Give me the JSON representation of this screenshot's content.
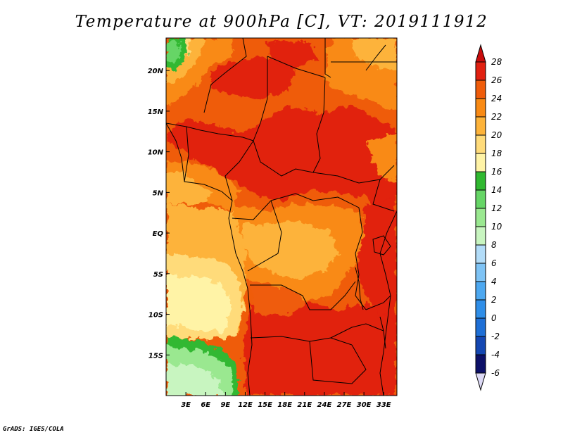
{
  "title": "Temperature at 900hPa [C], VT: 2019111912",
  "credit": "GrADS: IGES/COLA",
  "map": {
    "lon_range": [
      0,
      35
    ],
    "lat_range": [
      -20,
      24
    ],
    "x_ticks": [
      {
        "lon": 3,
        "label": "3E"
      },
      {
        "lon": 6,
        "label": "6E"
      },
      {
        "lon": 9,
        "label": "9E"
      },
      {
        "lon": 12,
        "label": "12E"
      },
      {
        "lon": 15,
        "label": "15E"
      },
      {
        "lon": 18,
        "label": "18E"
      },
      {
        "lon": 21,
        "label": "21E"
      },
      {
        "lon": 24,
        "label": "24E"
      },
      {
        "lon": 27,
        "label": "27E"
      },
      {
        "lon": 30,
        "label": "30E"
      },
      {
        "lon": 33,
        "label": "33E"
      }
    ],
    "y_ticks": [
      {
        "lat": 20,
        "label": "20N"
      },
      {
        "lat": 15,
        "label": "15N"
      },
      {
        "lat": 10,
        "label": "10N"
      },
      {
        "lat": 5,
        "label": "5N"
      },
      {
        "lat": 0,
        "label": "EQ"
      },
      {
        "lat": -5,
        "label": "5S"
      },
      {
        "lat": -10,
        "label": "10S"
      },
      {
        "lat": -15,
        "label": "15S"
      }
    ]
  },
  "colorbar": {
    "levels": [
      "-6",
      "-4",
      "-2",
      "0",
      "2",
      "4",
      "6",
      "8",
      "10",
      "12",
      "14",
      "16",
      "18",
      "20",
      "22",
      "24",
      "26",
      "28"
    ],
    "colors": [
      "#dcd9f5",
      "#0c1068",
      "#1447b2",
      "#1e6fd6",
      "#2f8ee8",
      "#4da8f0",
      "#7ec3f5",
      "#b2dcf8",
      "#c8f5c0",
      "#9ae890",
      "#66d566",
      "#30b830",
      "#fff3a6",
      "#ffdb7a",
      "#fdb33a",
      "#f98a14",
      "#ef5c0a",
      "#e12010",
      "#c80c0c"
    ]
  },
  "temperature_zones": [
    {
      "band": "26-28",
      "color": "#e12010"
    },
    {
      "band": "24-26",
      "color": "#ef5c0a"
    },
    {
      "band": "22-24",
      "color": "#f98a14"
    },
    {
      "band": "20-22",
      "color": "#fdb33a"
    },
    {
      "band": "18-20",
      "color": "#ffdb7a"
    },
    {
      "band": "16-18",
      "color": "#fff3a6"
    },
    {
      "band": "14-16",
      "color": "#30b830"
    },
    {
      "band": "12-14",
      "color": "#66d566"
    },
    {
      "band": "10-12",
      "color": "#9ae890"
    },
    {
      "band": "8-10",
      "color": "#c8f5c0"
    }
  ]
}
